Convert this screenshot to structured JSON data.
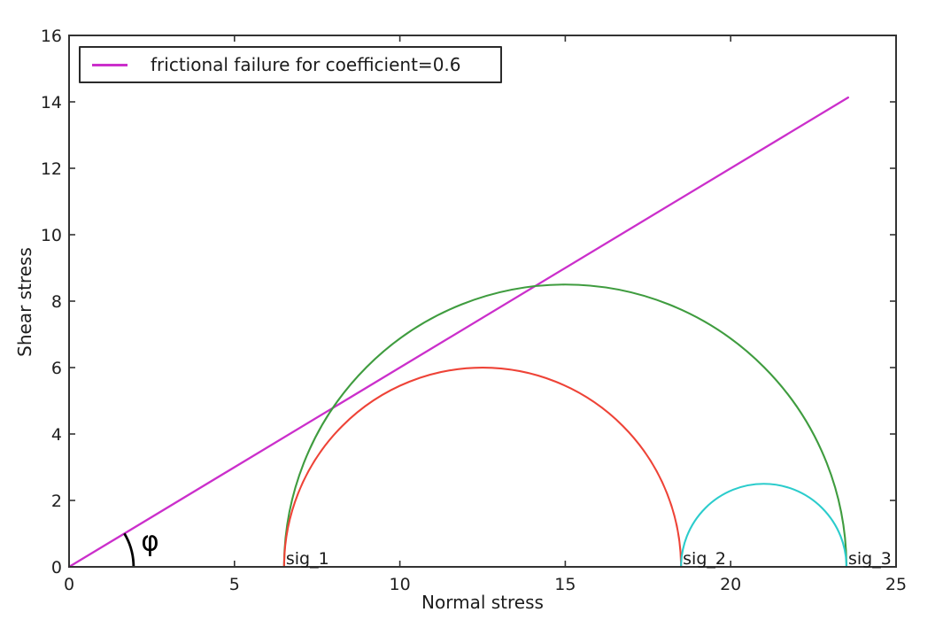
{
  "legend": {
    "label": "frictional failure for coefficient=0.6",
    "line_color": "#cb2fcb",
    "position": "upper left"
  },
  "chart_data": {
    "type": "line",
    "title": "",
    "xlabel": "Normal stress",
    "ylabel": "Shear stress",
    "xlim": [
      0,
      25
    ],
    "ylim": [
      0,
      16
    ],
    "xticks": [
      0,
      5,
      10,
      15,
      20,
      25
    ],
    "yticks": [
      0,
      2,
      4,
      6,
      8,
      10,
      12,
      14,
      16
    ],
    "grid": false,
    "legend_position": "upper left",
    "axis_color": "#333333",
    "tick_label_color": "#1f1f1f",
    "series": [
      {
        "name": "frictional failure for coefficient=0.6",
        "kind": "line",
        "color": "#cb2fcb",
        "slope": 0.6,
        "x": [
          0,
          23.55
        ],
        "y": [
          0,
          14.13
        ]
      },
      {
        "name": "mohr-circle-sig1-sig3",
        "kind": "semicircle",
        "color": "#3f9c3f",
        "center": 15.0,
        "radius": 8.5
      },
      {
        "name": "mohr-circle-sig1-sig2",
        "kind": "semicircle",
        "color": "#ee4337",
        "center": 12.5,
        "radius": 6.0
      },
      {
        "name": "mohr-circle-sig2-sig3",
        "kind": "semicircle",
        "color": "#2bcccc",
        "center": 21.0,
        "radius": 2.5
      }
    ],
    "principal_stresses": {
      "sig_1": 6.5,
      "sig_2": 18.5,
      "sig_3": 23.5
    },
    "annotations": [
      {
        "text": "sig_1",
        "x": 6.5,
        "y": 0,
        "role": "principal-stress-label"
      },
      {
        "text": "sig_2",
        "x": 18.5,
        "y": 0,
        "role": "principal-stress-label"
      },
      {
        "text": "sig_3",
        "x": 23.5,
        "y": 0,
        "role": "principal-stress-label"
      },
      {
        "text": "φ",
        "x": 2.45,
        "y": 0.5,
        "role": "friction-angle-symbol"
      }
    ],
    "angle_arc": {
      "cx": 0,
      "cy": 0,
      "radius": 1.95,
      "start_deg": 0,
      "end_deg": 31,
      "color": "#000000"
    }
  }
}
